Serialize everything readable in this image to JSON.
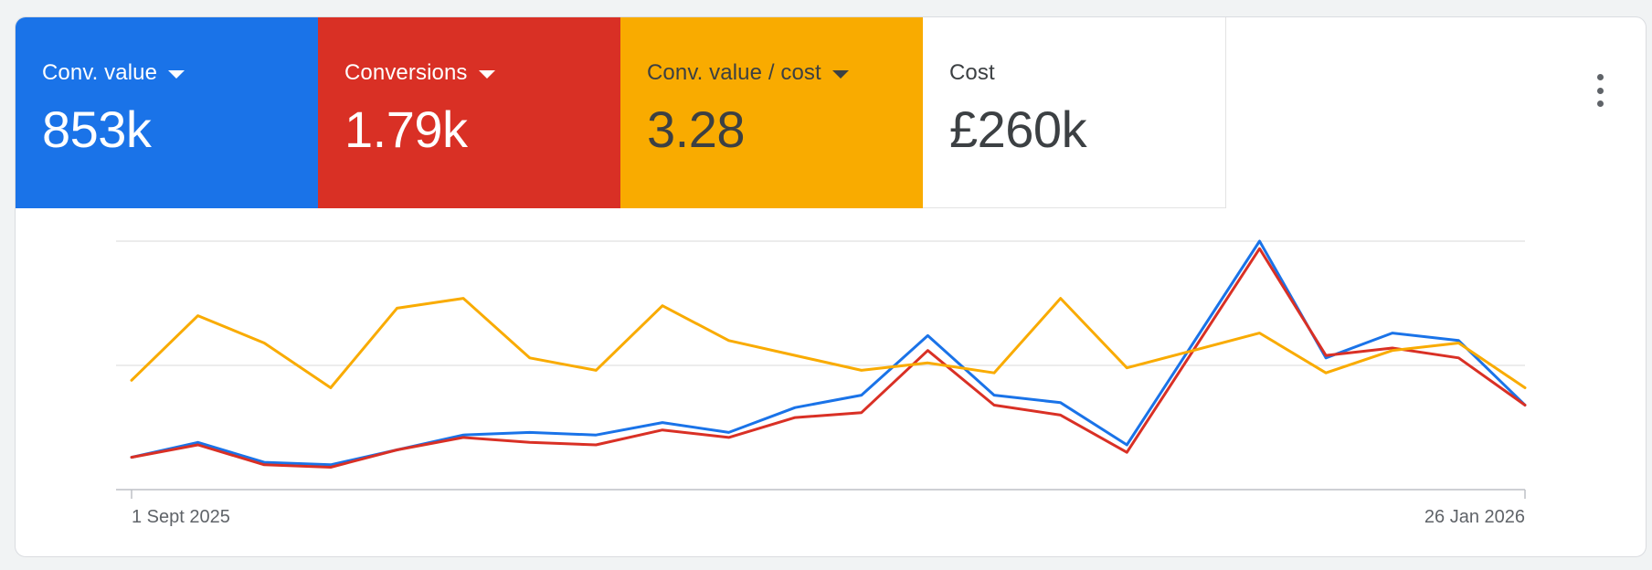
{
  "metrics": [
    {
      "label": "Conv. value",
      "value": "853k",
      "bg": "#1a73e8",
      "fg": "#ffffff",
      "dropdown": true
    },
    {
      "label": "Conversions",
      "value": "1.79k",
      "bg": "#d93025",
      "fg": "#ffffff",
      "dropdown": true
    },
    {
      "label": "Conv. value / cost",
      "value": "3.28",
      "bg": "#f9ab00",
      "fg": "#3c4043",
      "dropdown": true
    },
    {
      "label": "Cost",
      "value": "£260k",
      "bg": "#ffffff",
      "fg": "#3c4043",
      "dropdown": false
    }
  ],
  "menu_icon": "more-vert-icon",
  "chart_data": {
    "type": "line",
    "x_start_label": "1 Sept 2025",
    "x_end_label": "26 Jan 2026",
    "gridlines": 3,
    "series": [
      {
        "color": "#1a73e8",
        "values": [
          0.13,
          0.19,
          0.11,
          0.1,
          0.16,
          0.22,
          0.23,
          0.22,
          0.27,
          0.23,
          0.33,
          0.38,
          0.62,
          0.38,
          0.35,
          0.18,
          0.59,
          1.0,
          0.53,
          0.63,
          0.6,
          0.34
        ]
      },
      {
        "color": "#d93025",
        "values": [
          0.13,
          0.18,
          0.1,
          0.09,
          0.16,
          0.21,
          0.19,
          0.18,
          0.24,
          0.21,
          0.29,
          0.31,
          0.56,
          0.34,
          0.3,
          0.15,
          0.56,
          0.97,
          0.54,
          0.57,
          0.53,
          0.34
        ]
      },
      {
        "color": "#f9ab00",
        "values": [
          0.44,
          0.7,
          0.59,
          0.41,
          0.73,
          0.77,
          0.53,
          0.48,
          0.74,
          0.6,
          0.54,
          0.48,
          0.51,
          0.47,
          0.77,
          0.49,
          0.56,
          0.63,
          0.47,
          0.56,
          0.59,
          0.41
        ]
      }
    ]
  }
}
